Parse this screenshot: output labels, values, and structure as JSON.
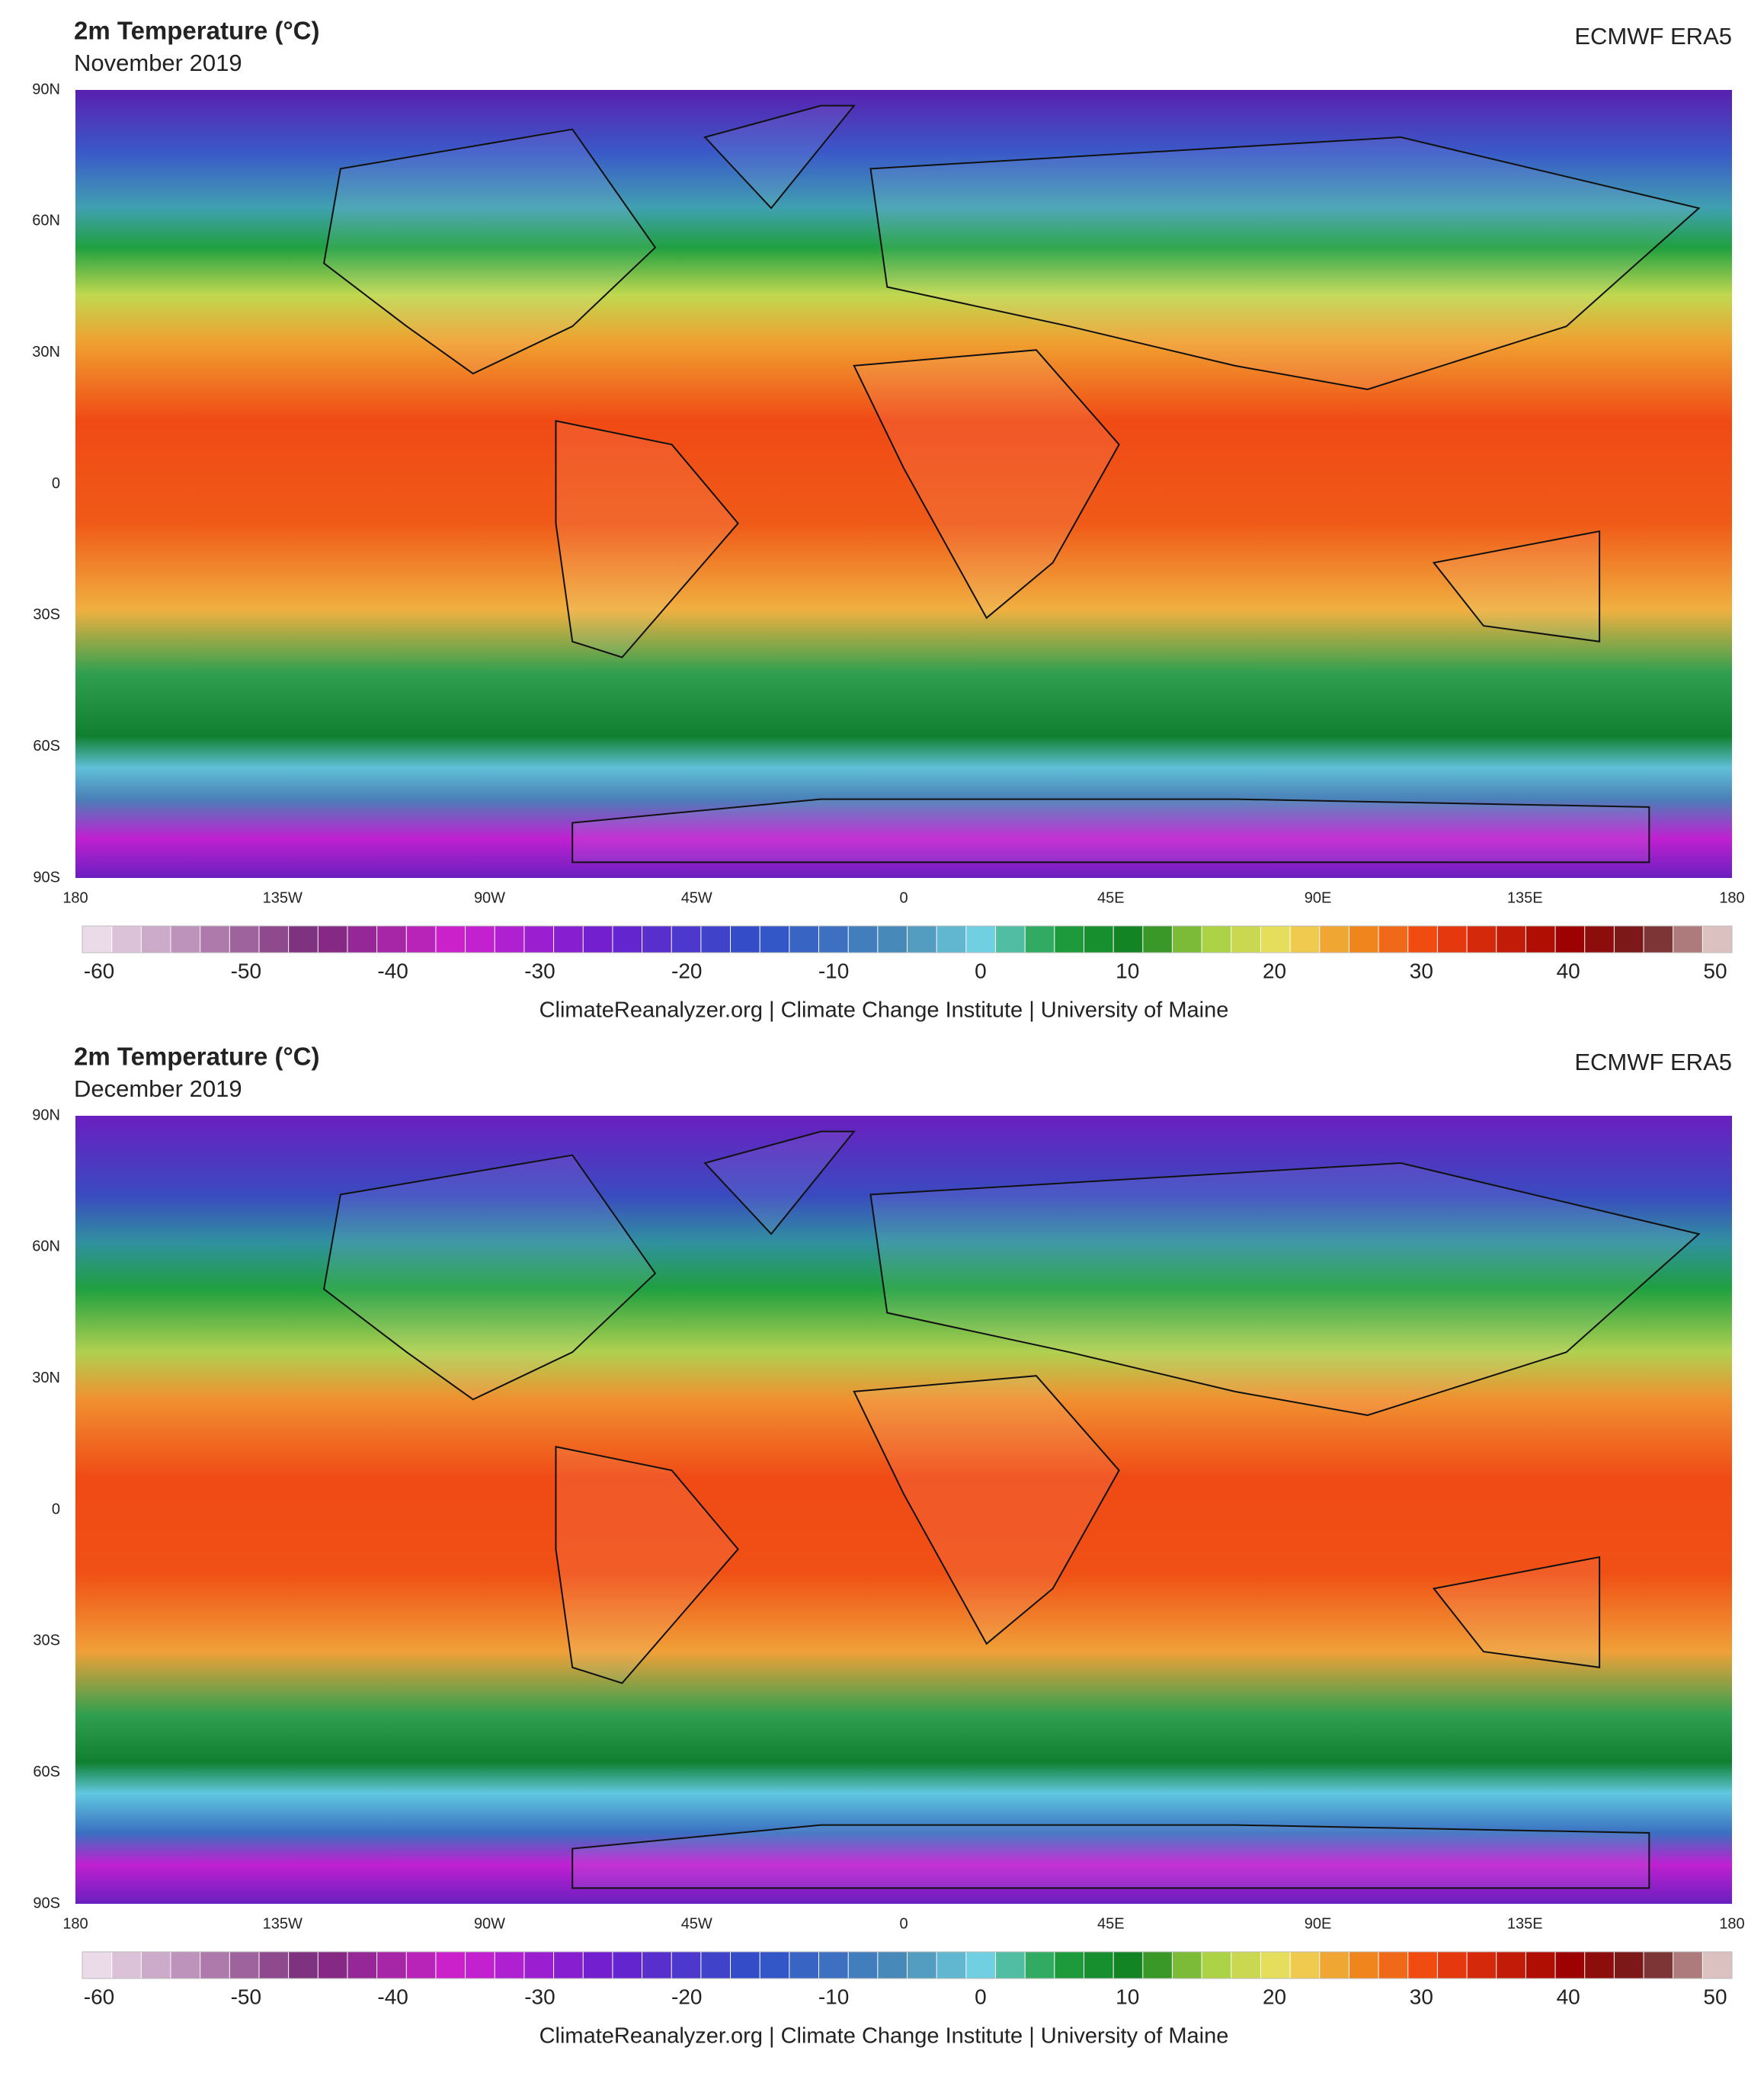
{
  "panels": [
    {
      "title": "2m Temperature (°C)",
      "subtitle": "November 2019",
      "source": "ECMWF ERA5",
      "lat_labels": [
        "90N",
        "60N",
        "30N",
        "0",
        "30S",
        "60S",
        "90S"
      ],
      "lon_labels": [
        "180",
        "135W",
        "90W",
        "45W",
        "0",
        "45E",
        "90E",
        "135E",
        "180"
      ],
      "colorbar_ticks": [
        -60,
        -50,
        -40,
        -30,
        -20,
        -10,
        0,
        10,
        20,
        30,
        40,
        50
      ],
      "credit": "ClimateReanalyzer.org | Climate Change Institute | University of Maine"
    },
    {
      "title": "2m Temperature (°C)",
      "subtitle": "December 2019",
      "source": "ECMWF ERA5",
      "lat_labels": [
        "90N",
        "60N",
        "30N",
        "0",
        "30S",
        "60S",
        "90S"
      ],
      "lon_labels": [
        "180",
        "135W",
        "90W",
        "45W",
        "0",
        "45E",
        "90E",
        "135E",
        "180"
      ],
      "colorbar_ticks": [
        -60,
        -50,
        -40,
        -30,
        -20,
        -10,
        0,
        10,
        20,
        30,
        40,
        50
      ],
      "credit": "ClimateReanalyzer.org | Climate Change Institute | University of Maine"
    }
  ]
}
